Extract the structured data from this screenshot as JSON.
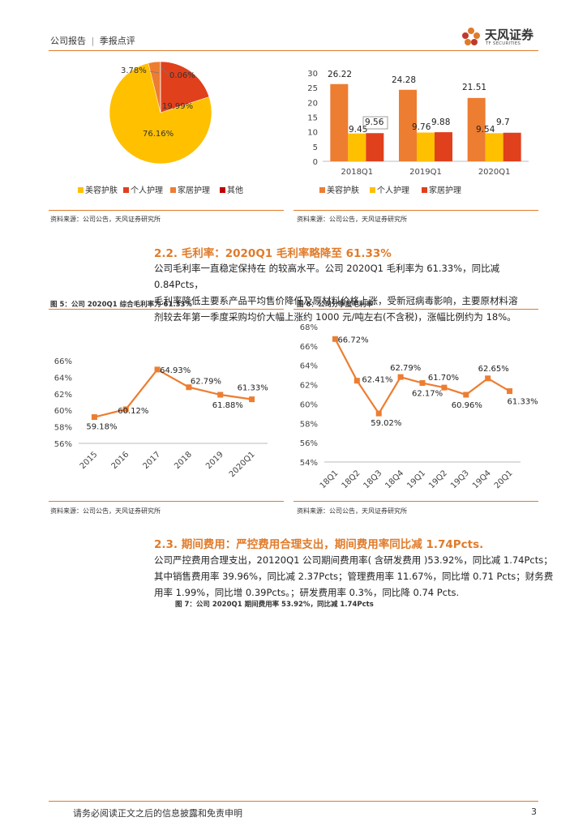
{
  "header": {
    "left_a": "公司报告",
    "left_sep": "|",
    "left_b": "季报点评",
    "brand": "天风证券",
    "brand_en": "TF SECURITIES"
  },
  "colors": {
    "accent": "#e07b2a",
    "orange": "#ed7d31",
    "yellow": "#ffc000",
    "red": "#e0401c"
  },
  "source_text": "资料来源：公司公告，天风证券研究所",
  "section_22": {
    "title": "2.2. 毛利率：2020Q1 毛利率略降至 61.33%",
    "lines": [
      "公司毛利率一直稳定保持在  的较高水平。公司 2020Q1 毛利率为 61.33%，同比减 0.84Pcts，",
      "毛利率降低主要系产品平均售价降低及原材料价格上涨，受新冠病毒影响，主要原材料溶",
      "剂较去年第一季度采购均价大幅上涨约 1000 元/吨左右(不含税)，涨幅比例约为 18%。"
    ]
  },
  "fig5_title": "图 5：公司 2020Q1 综合毛利率为 61.33%",
  "fig6_title": "图 6：公司分季度毛利率",
  "section_23": {
    "title": "2.3. 期间费用：严控费用合理支出，期间费用率同比减 1.74Pcts.",
    "lines": [
      "公司严控费用合理支出，20120Q1 公司期间费用率( 含研发费用 )53.92%，同比减 1.74Pcts；",
      "其中销售费用率 39.96%，同比减 2.37Pcts；管理费用率 11.67%，同比增 0.71 Pcts；财务费",
      "用率 1.99%，同比增 0.39Pcts。；研发费用率 0.3%，同比降 0.74 Pcts."
    ]
  },
  "fig7_title": "图 7：公司 2020Q1 期间费用率 53.92%，同比减 1.74Pcts",
  "footer": {
    "disclaimer": "请务必阅读正文之后的信息披露和免责申明",
    "page": "3"
  },
  "chart_data": [
    {
      "type": "pie",
      "labels": [
        "美容护肤",
        "个人护理",
        "家居护理",
        "其他"
      ],
      "values": [
        76.16,
        19.99,
        3.78,
        0.06
      ],
      "value_labels": [
        "76.16%",
        "19.99%",
        "3.78%",
        "0.06%"
      ],
      "legend": "bottom"
    },
    {
      "type": "bar",
      "categories": [
        "2018Q1",
        "2019Q1",
        "2020Q1"
      ],
      "series": [
        {
          "name": "美容护肤",
          "values": [
            26.22,
            24.28,
            21.51
          ],
          "labels": [
            "26.22",
            "24.28",
            "21.51"
          ]
        },
        {
          "name": "个人护理",
          "values": [
            9.45,
            9.76,
            9.54
          ],
          "labels": [
            "9.45",
            "9.76",
            "9.54"
          ]
        },
        {
          "name": "家居护理",
          "values": [
            9.56,
            9.88,
            9.7
          ],
          "labels": [
            "9.56",
            "9.88",
            "9.7"
          ]
        }
      ],
      "ylim": [
        0,
        30
      ],
      "yticks": [
        "0",
        "5",
        "10",
        "15",
        "20",
        "25",
        "30"
      ],
      "legend": "bottom"
    },
    {
      "type": "line",
      "x": [
        "2015",
        "2016",
        "2017",
        "2018",
        "2019",
        "2020Q1"
      ],
      "values": [
        59.18,
        60.12,
        64.93,
        62.79,
        61.88,
        61.33
      ],
      "labels": [
        "59.18%",
        "60.12%",
        "64.93%",
        "62.79%",
        "61.88%",
        "61.33%"
      ],
      "ylim": [
        56,
        66
      ],
      "yticks": [
        "56%",
        "58%",
        "60%",
        "62%",
        "64%",
        "66%"
      ]
    },
    {
      "type": "line",
      "x": [
        "18Q1",
        "18Q2",
        "18Q3",
        "18Q4",
        "19Q1",
        "19Q2",
        "19Q3",
        "19Q4",
        "20Q1"
      ],
      "values": [
        66.72,
        62.41,
        59.02,
        62.79,
        62.17,
        61.7,
        60.96,
        62.65,
        61.33
      ],
      "labels": [
        "66.72%",
        "62.41%",
        "59.02%",
        "62.79%",
        "62.17%",
        "61.70%",
        "60.96%",
        "62.65%",
        "61.33%"
      ],
      "ylim": [
        54,
        68
      ],
      "yticks": [
        "54%",
        "56%",
        "58%",
        "60%",
        "62%",
        "64%",
        "66%",
        "68%"
      ]
    }
  ]
}
